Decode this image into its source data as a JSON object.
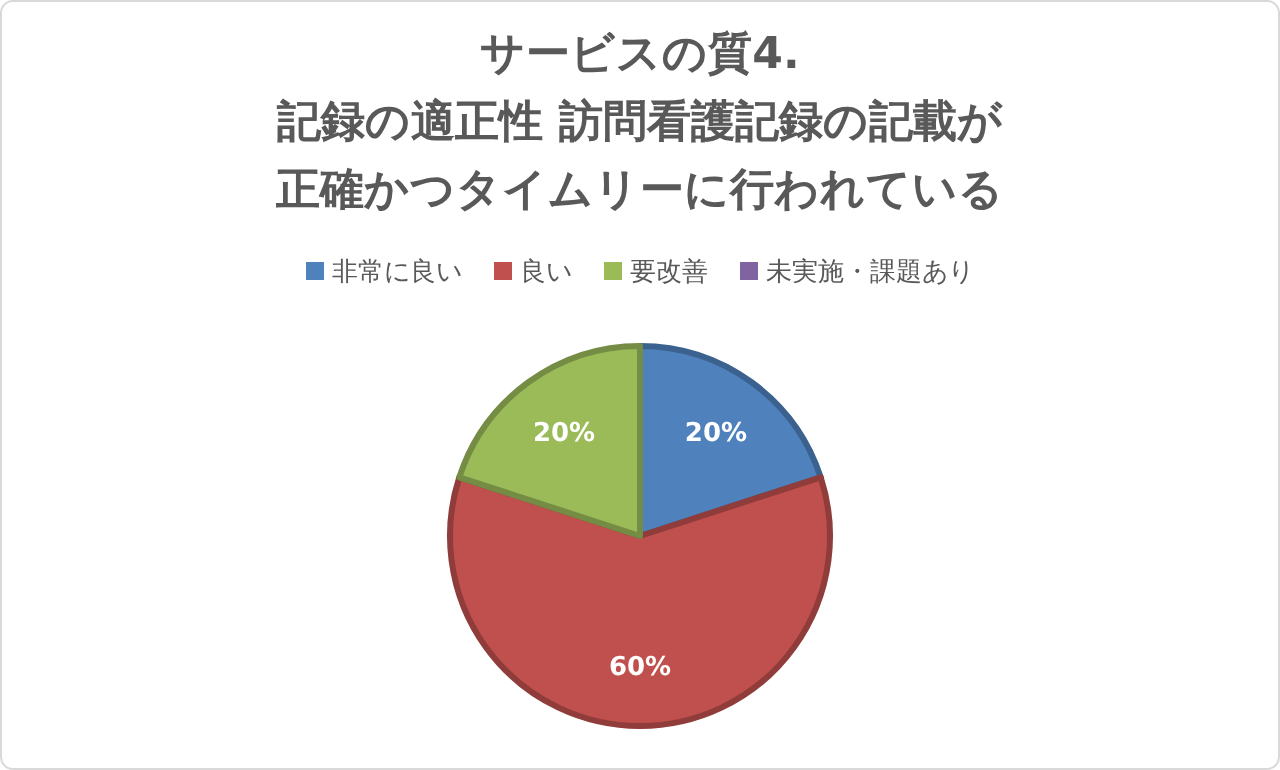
{
  "chart_data": {
    "type": "pie",
    "title": "サービスの質4.\n記録の適正性 訪問看護記録の記載が正確かつタイムリーに行われている",
    "categories": [
      "非常に良い",
      "良い",
      "要改善",
      "未実施・課題あり"
    ],
    "values": [
      20,
      60,
      20,
      0
    ],
    "colors": [
      "#4f81bd",
      "#c0504d",
      "#9bbb59",
      "#8064a2"
    ],
    "value_labels": [
      "20%",
      "60%",
      "20%",
      null
    ],
    "legend": "top"
  }
}
